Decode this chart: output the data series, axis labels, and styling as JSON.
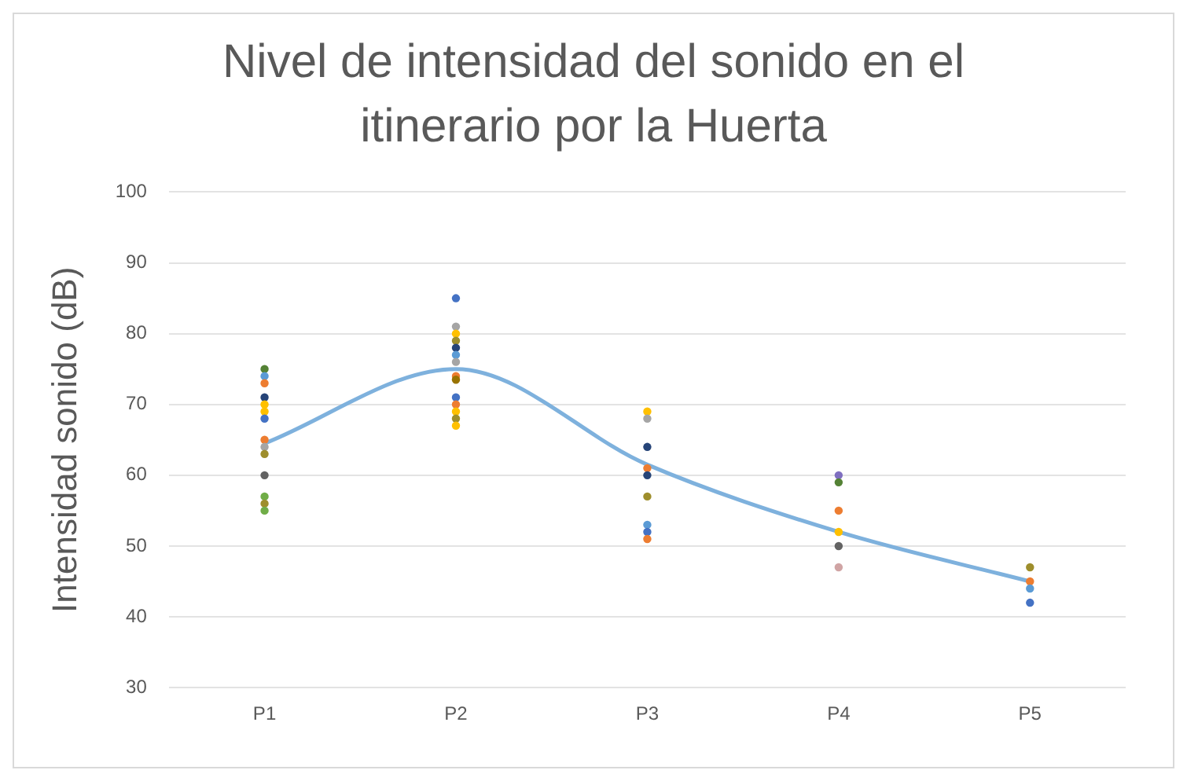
{
  "chart_data": {
    "type": "scatter",
    "title": "Nivel de intensidad del sonido en el itinerario por la Huerta",
    "ylabel": "Intensidad sonido (dB)",
    "categories": [
      "P1",
      "P2",
      "P3",
      "P4",
      "P5"
    ],
    "ylim": [
      30,
      100
    ],
    "yticks": [
      30,
      40,
      50,
      60,
      70,
      80,
      90,
      100
    ],
    "grid": "y",
    "legend": false,
    "marker": "circle",
    "series": [
      {
        "type": "line",
        "color": "#7eb1dd",
        "values": [
          64.5,
          75,
          61.5,
          52,
          45
        ],
        "line_style": "solid",
        "marker": "none"
      },
      {
        "x": [
          "P1",
          "P1",
          "P1",
          "P1",
          "P1",
          "P1",
          "P1",
          "P1",
          "P1",
          "P1",
          "P1",
          "P1",
          "P1",
          "P1",
          "P2",
          "P2",
          "P2",
          "P2",
          "P2",
          "P2",
          "P2",
          "P2",
          "P2",
          "P2",
          "P2",
          "P2",
          "P2",
          "P2",
          "P3",
          "P3",
          "P3",
          "P3",
          "P3",
          "P3",
          "P3",
          "P3",
          "P3",
          "P4",
          "P4",
          "P4",
          "P4",
          "P4",
          "P4",
          "P5",
          "P5",
          "P5",
          "P5"
        ],
        "values": [
          75,
          74,
          73,
          71,
          70,
          69,
          68,
          65,
          64,
          63,
          60,
          57,
          56,
          55,
          85,
          81,
          80,
          79,
          78,
          77,
          76,
          74,
          73.5,
          71,
          70,
          69,
          68,
          67,
          69,
          68,
          64,
          61,
          60,
          57,
          53,
          52,
          51,
          60,
          59,
          55,
          52,
          50,
          47,
          47,
          45,
          44,
          42
        ],
        "colors": [
          "#548235",
          "#5b9bd5",
          "#ed7d31",
          "#264478",
          "#ffc000",
          "#ffc000",
          "#4472c4",
          "#ed7d31",
          "#a5a5a5",
          "#9e8e2c",
          "#636363",
          "#70ad47",
          "#9e8e2c",
          "#70ad47",
          "#4472c4",
          "#a5a5a5",
          "#ffc000",
          "#9e8e2c",
          "#264478",
          "#5b9bd5",
          "#a5a5a5",
          "#ed7d31",
          "#997300",
          "#4472c4",
          "#ed7d31",
          "#ffc000",
          "#9e8e2c",
          "#ffc000",
          "#ffc000",
          "#a5a5a5",
          "#264478",
          "#ed7d31",
          "#264478",
          "#9e8e2c",
          "#5b9bd5",
          "#4472c4",
          "#ed7d31",
          "#7f6fc0",
          "#548235",
          "#ed7d31",
          "#ffc000",
          "#636363",
          "#d0a4a4",
          "#9e8e2c",
          "#ed7d31",
          "#5b9bd5",
          "#4472c4"
        ]
      }
    ]
  }
}
